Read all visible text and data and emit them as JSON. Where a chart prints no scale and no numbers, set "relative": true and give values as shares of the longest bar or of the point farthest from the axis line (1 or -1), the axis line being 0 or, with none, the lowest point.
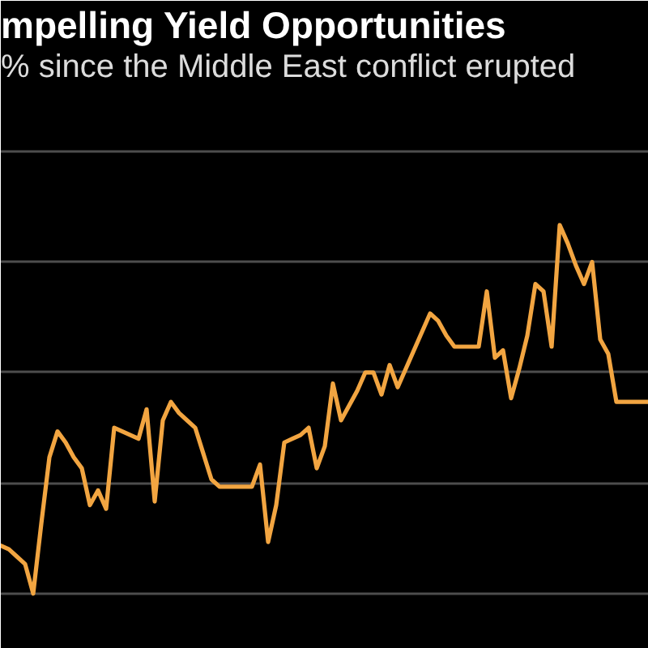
{
  "chart_data": {
    "type": "line",
    "title": "mpelling Yield Opportunities",
    "subtitle": "% since the Middle East conflict erupted",
    "relative": true,
    "grid": "y",
    "categories": [
      null,
      null,
      null,
      null,
      null,
      null,
      null,
      null,
      null,
      null,
      null,
      null,
      null,
      null,
      null,
      null,
      null,
      null,
      null,
      null,
      null,
      null,
      null,
      null,
      null,
      null,
      null,
      null,
      null,
      null,
      null,
      null,
      null,
      null,
      null,
      null,
      null,
      null,
      null,
      null,
      null,
      null,
      null,
      null,
      null,
      null,
      null,
      null,
      null,
      null,
      null,
      null,
      null,
      null,
      null,
      null,
      null,
      null,
      null,
      null,
      null,
      null,
      null,
      null,
      null,
      null,
      null,
      null,
      null,
      null,
      null,
      null,
      null,
      null,
      null,
      null,
      null,
      null,
      null,
      null,
      null
    ],
    "series": [
      {
        "color": "#f2a541",
        "values": [
          0.13,
          0.12,
          0.1,
          0.08,
          0,
          0.19,
          0.37,
          0.44,
          0.41,
          0.37,
          0.34,
          0.24,
          0.28,
          0.23,
          0.45,
          0.44,
          0.43,
          0.42,
          0.5,
          0.25,
          0.47,
          0.52,
          0.49,
          0.47,
          0.45,
          0.38,
          0.31,
          0.29,
          0.29,
          0.29,
          0.29,
          0.29,
          0.35,
          0.14,
          0.24,
          0.41,
          0.42,
          0.43,
          0.45,
          0.34,
          0.4,
          0.57,
          0.47,
          0.51,
          0.55,
          0.6,
          0.6,
          0.54,
          0.62,
          0.56,
          0.61,
          0.66,
          0.71,
          0.76,
          0.74,
          0.7,
          0.67,
          0.67,
          0.67,
          0.67,
          0.82,
          0.64,
          0.66,
          0.53,
          0.61,
          0.7,
          0.84,
          0.82,
          0.67,
          1,
          0.95,
          0.89,
          0.84,
          0.9,
          0.69,
          0.65,
          0.52,
          0.52,
          0.52,
          0.52,
          0.52
        ]
      }
    ]
  }
}
